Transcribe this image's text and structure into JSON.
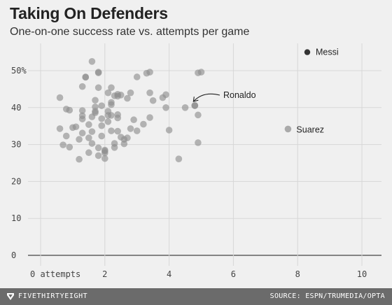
{
  "title": "Taking On Defenders",
  "subtitle": "One-on-one success rate vs. attempts per game",
  "footer": {
    "brand": "FIVETHIRTYEIGHT",
    "source": "SOURCE: ESPN/TRUMEDIA/OPTA",
    "logo_icon": "fivethirtyeight-logo-icon"
  },
  "chart_data": {
    "type": "scatter",
    "title": "Taking On Defenders",
    "subtitle": "One-on-one success rate vs. attempts per game",
    "x_range": [
      0,
      10
    ],
    "y_range": [
      0,
      55
    ],
    "x_ticks": [
      {
        "value": 0,
        "label": "0 attempts"
      },
      {
        "value": 2,
        "label": "2"
      },
      {
        "value": 4,
        "label": "4"
      },
      {
        "value": 6,
        "label": "6"
      },
      {
        "value": 8,
        "label": "8"
      },
      {
        "value": 10,
        "label": "10"
      }
    ],
    "y_ticks": [
      {
        "value": 0,
        "label": "0"
      },
      {
        "value": 10,
        "label": "10"
      },
      {
        "value": 20,
        "label": "20"
      },
      {
        "value": 30,
        "label": "30"
      },
      {
        "value": 40,
        "label": "40"
      },
      {
        "value": 50,
        "label": "50%"
      }
    ],
    "grid": true,
    "colors": {
      "points": "#8c8c8c",
      "highlight": "#333333",
      "grid": "#d7d7d7",
      "baseline": "#444444"
    },
    "highlights": [
      {
        "name": "Messi",
        "x": 8.3,
        "y": 55.0
      },
      {
        "name": "Ronaldo",
        "x": 4.8,
        "y": 40.5
      },
      {
        "name": "Suarez",
        "x": 7.7,
        "y": 34.2
      }
    ],
    "points": [
      [
        0.6,
        42.7
      ],
      [
        0.6,
        34.3
      ],
      [
        0.7,
        29.9
      ],
      [
        0.8,
        32.3
      ],
      [
        0.8,
        39.6
      ],
      [
        0.9,
        29.3
      ],
      [
        0.9,
        39.3
      ],
      [
        1.0,
        34.6
      ],
      [
        1.1,
        34.8
      ],
      [
        1.2,
        31.4
      ],
      [
        1.2,
        26.0
      ],
      [
        1.3,
        37.8
      ],
      [
        1.3,
        36.9
      ],
      [
        1.3,
        39.2
      ],
      [
        1.3,
        33.1
      ],
      [
        1.3,
        45.7
      ],
      [
        1.4,
        48.2
      ],
      [
        1.5,
        35.4
      ],
      [
        1.5,
        31.8
      ],
      [
        1.5,
        27.8
      ],
      [
        1.4,
        48.3
      ],
      [
        1.6,
        52.5
      ],
      [
        1.6,
        33.5
      ],
      [
        1.6,
        30.3
      ],
      [
        1.6,
        37.5
      ],
      [
        1.7,
        39.0
      ],
      [
        1.7,
        40.2
      ],
      [
        1.7,
        42.0
      ],
      [
        1.7,
        38.6
      ],
      [
        1.8,
        49.6
      ],
      [
        1.8,
        49.4
      ],
      [
        1.8,
        45.4
      ],
      [
        1.8,
        29.1
      ],
      [
        1.8,
        27.0
      ],
      [
        1.9,
        40.5
      ],
      [
        1.9,
        37.0
      ],
      [
        1.9,
        35.1
      ],
      [
        1.9,
        32.3
      ],
      [
        2.0,
        28.5
      ],
      [
        2.0,
        28.2
      ],
      [
        2.0,
        26.2
      ],
      [
        2.1,
        39.0
      ],
      [
        2.1,
        37.9
      ],
      [
        2.1,
        44.0
      ],
      [
        2.1,
        36.2
      ],
      [
        2.0,
        27.7
      ],
      [
        2.2,
        41.4
      ],
      [
        2.2,
        45.4
      ],
      [
        2.2,
        40.8
      ],
      [
        2.2,
        37.9
      ],
      [
        2.2,
        33.7
      ],
      [
        2.3,
        43.2
      ],
      [
        2.3,
        30.3
      ],
      [
        2.3,
        29.2
      ],
      [
        2.4,
        43.6
      ],
      [
        2.4,
        43.1
      ],
      [
        2.4,
        38.1
      ],
      [
        2.4,
        37.2
      ],
      [
        2.4,
        33.6
      ],
      [
        2.5,
        43.4
      ],
      [
        2.5,
        32.0
      ],
      [
        2.6,
        31.4
      ],
      [
        2.6,
        30.2
      ],
      [
        2.7,
        42.5
      ],
      [
        2.7,
        31.8
      ],
      [
        2.8,
        34.3
      ],
      [
        2.8,
        44.0
      ],
      [
        2.9,
        36.7
      ],
      [
        3.0,
        33.7
      ],
      [
        3.0,
        48.3
      ],
      [
        3.2,
        35.5
      ],
      [
        3.3,
        49.3
      ],
      [
        3.4,
        49.6
      ],
      [
        3.4,
        44.0
      ],
      [
        3.4,
        37.3
      ],
      [
        3.5,
        41.9
      ],
      [
        3.8,
        42.7
      ],
      [
        3.9,
        40.0
      ],
      [
        3.9,
        43.5
      ],
      [
        4.0,
        33.9
      ],
      [
        4.3,
        26.1
      ],
      [
        4.5,
        40.0
      ],
      [
        4.8,
        40.6
      ],
      [
        4.9,
        38.0
      ],
      [
        4.9,
        49.4
      ],
      [
        5.0,
        49.6
      ],
      [
        4.9,
        30.5
      ]
    ]
  }
}
